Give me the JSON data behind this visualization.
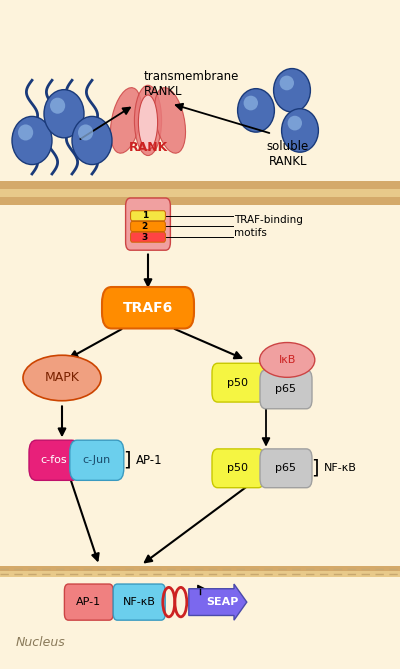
{
  "bg_color": "#fdf3dc",
  "nucleus_label": "Nucleus",
  "transmembrane_label": "transmembrane\nRANKL",
  "soluble_label": "soluble\nRANKL",
  "rank_label": "RANK",
  "traf6_label": "TRAF6",
  "mapk_label": "MAPK",
  "cfos_label": "c-fos",
  "cjun_label": "c-Jun",
  "ap1_bracket_label": "AP-1",
  "ikb_label": "IκB",
  "p50_label": "p50",
  "p65_label": "p65",
  "nfkb_bracket_label": "NF-κB",
  "traf_binding_label": "TRAF-binding\nmotifs",
  "seap_label": "SEAP",
  "ap1_nucleus_label": "AP-1",
  "nfkb_nucleus_label": "NF-κB",
  "mem_stripe1": "#d4a96a",
  "mem_stripe2": "#e8c98a",
  "mem_stripe3": "#d4a96a",
  "nuc_dash_color": "#c8a870",
  "blue_sphere": "#4a6db5",
  "blue_sphere_edge": "#1a3a7a",
  "blue_highlight": "#8ab0e0",
  "rank_petal": "#e87a7a",
  "rank_petal_edge": "#cc4444",
  "rank_text": "#cc2222",
  "motif_colors": [
    "#f5e642",
    "#ff8c00",
    "#ff4444"
  ],
  "motif_edge": "#cc6600",
  "body_fill": "#f0a0a0",
  "body_edge": "#cc4444",
  "traf6_fill": "#ff8c00",
  "traf6_edge": "#e06000",
  "traf6_text": "#ffffff",
  "mapk_fill": "#f0a080",
  "mapk_edge": "#cc4400",
  "mapk_text": "#7a2200",
  "cfos_fill": "#e8207a",
  "cfos_edge": "#c0106a",
  "cfos_text": "#ffffff",
  "cjun_fill": "#6bcfed",
  "cjun_edge": "#3a9ac0",
  "cjun_text": "#1a4a6a",
  "p50_fill": "#f5f542",
  "p50_edge": "#c8c800",
  "p65_fill": "#c8c8c8",
  "p65_edge": "#a0a0a0",
  "ikb_fill": "#f0a0a0",
  "ikb_edge": "#cc4444",
  "ikb_text": "#cc2222",
  "ap1_box_fill": "#f08080",
  "ap1_box_edge": "#cc4444",
  "nfkb_box_fill": "#6bcfed",
  "nfkb_box_edge": "#3a9ac0",
  "seap_fill": "#7b68ee",
  "seap_edge": "#4a4aaa",
  "dna_loop_color": "#cc2222",
  "arrow_color": "#000000"
}
